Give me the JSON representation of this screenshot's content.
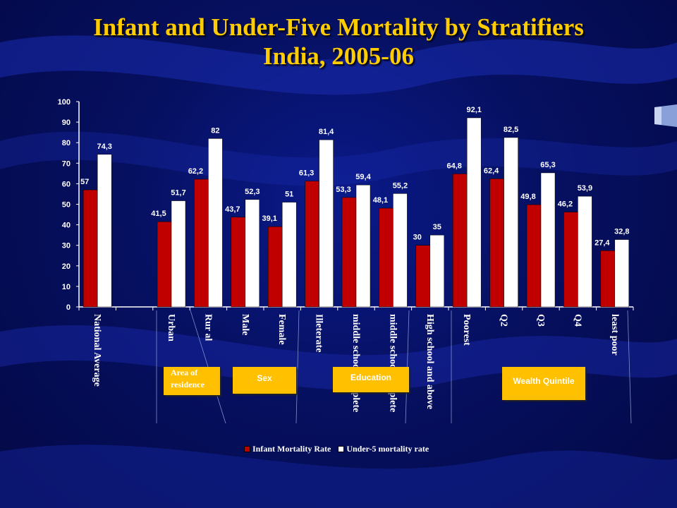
{
  "title": {
    "line1": "Infant and Under-Five Mortality by Stratifiers",
    "line2": "India, 2005-06"
  },
  "colors": {
    "infant": "#c00000",
    "under5": "#ffffff",
    "title": "#ffcc00",
    "group_box": "#ffc000",
    "axis": "#ffffff"
  },
  "group_labels": {
    "residence": "Area of residence",
    "sex": "Sex",
    "education": "Education",
    "wealth": "Wealth Quintile"
  },
  "chart_data": {
    "type": "bar",
    "title": "",
    "xlabel": "",
    "ylabel": "",
    "ylim": [
      0,
      100
    ],
    "yticks": [
      "0",
      "10",
      "20",
      "30",
      "40",
      "50",
      "60",
      "70",
      "80",
      "90",
      "100"
    ],
    "legend_position": "bottom",
    "categories": [
      "National Average",
      "",
      "Urban",
      "Rur al",
      "Male",
      "Female",
      "Illeterate",
      "middle school complete",
      "middle school complete",
      "High school and above",
      "Poorest",
      "Q2",
      "Q3",
      "Q4",
      "least poor"
    ],
    "series": [
      {
        "name": "Infant Mortality Rate",
        "values": [
          57,
          null,
          41.5,
          62.2,
          43.7,
          39.1,
          61.3,
          53.3,
          48.1,
          30,
          64.8,
          62.4,
          49.8,
          46.2,
          27.4
        ],
        "labels": [
          "57",
          "",
          "41,5",
          "62,2",
          "43,7",
          "39,1",
          "61,3",
          "53,3",
          "48,1",
          "30",
          "64,8",
          "62,4",
          "49,8",
          "46,2",
          "27,4"
        ]
      },
      {
        "name": "Under-5 mortality rate",
        "values": [
          74.3,
          null,
          51.7,
          82,
          52.3,
          51,
          81.4,
          59.4,
          55.2,
          35,
          92.1,
          82.5,
          65.3,
          53.9,
          32.8
        ],
        "labels": [
          "74,3",
          "",
          "51,7",
          "82",
          "52,3",
          "51",
          "81,4",
          "59,4",
          "55,2",
          "35",
          "92,1",
          "82,5",
          "65,3",
          "53,9",
          "32,8"
        ]
      }
    ]
  }
}
